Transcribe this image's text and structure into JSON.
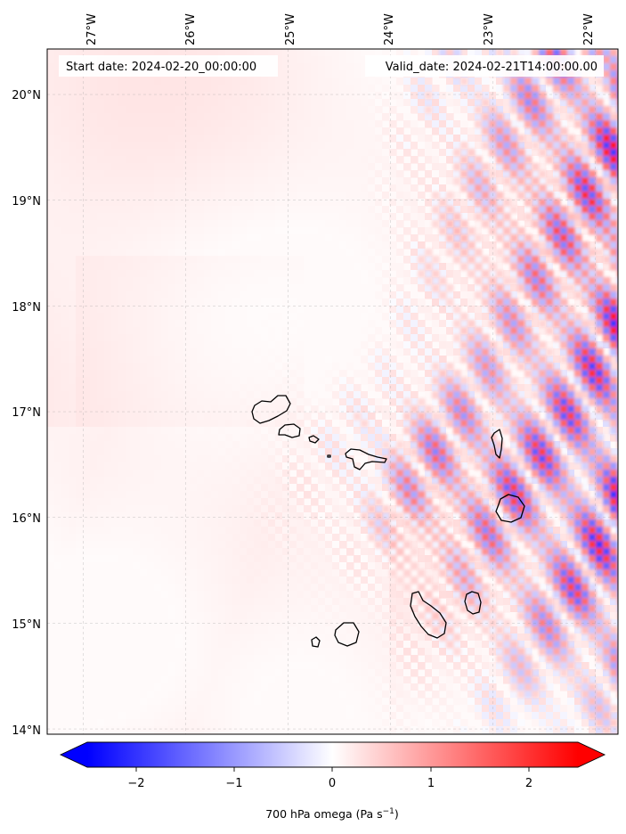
{
  "header": {
    "start_date": "Start date: 2024-02-20_00:00:00",
    "valid_date": "Valid_date: 2024-02-21T14:00:00.00"
  },
  "map": {
    "lon_labels": [
      "27°W",
      "26°W",
      "25°W",
      "24°W",
      "23°W",
      "22°W"
    ],
    "lat_labels": [
      "20°N",
      "19°N",
      "18°N",
      "17°N",
      "16°N",
      "15°N",
      "14°N"
    ],
    "lon_values": [
      -27,
      -26,
      -25,
      -24,
      -23,
      -22
    ],
    "lat_values": [
      20,
      19,
      18,
      17,
      16,
      15,
      14
    ],
    "lon_range": [
      -27.35,
      -21.78
    ],
    "lat_range": [
      13.95,
      20.43
    ],
    "gridlines": true,
    "islands": [
      {
        "name": "Santo Antão",
        "lon": -25.15,
        "lat": 17.02
      },
      {
        "name": "São Vicente",
        "lon": -24.98,
        "lat": 16.83
      },
      {
        "name": "Santa Luzia",
        "lon": -24.75,
        "lat": 16.75
      },
      {
        "name": "São Nicolau",
        "lon": -24.25,
        "lat": 16.6
      },
      {
        "name": "Sal",
        "lon": -22.93,
        "lat": 16.72
      },
      {
        "name": "Boa Vista",
        "lon": -22.82,
        "lat": 16.08
      },
      {
        "name": "Maio",
        "lon": -23.17,
        "lat": 15.23
      },
      {
        "name": "Santiago",
        "lon": -23.62,
        "lat": 15.08
      },
      {
        "name": "Fogo",
        "lon": -24.38,
        "lat": 14.93
      },
      {
        "name": "Brava",
        "lon": -24.72,
        "lat": 14.85
      }
    ]
  },
  "colorbar": {
    "label": "700 hPa omega (Pa s",
    "label_sup": "−1",
    "label_close": ")",
    "tick_labels": [
      "−2",
      "−1",
      "0",
      "1",
      "2"
    ],
    "tick_values": [
      -2,
      -1,
      0,
      1,
      2
    ],
    "range": [
      -2.5,
      2.5
    ],
    "colormap": "bwr",
    "extend": "both",
    "color_min": "#0000ff",
    "color_mid": "#ffffff",
    "color_max": "#ff0000"
  }
}
